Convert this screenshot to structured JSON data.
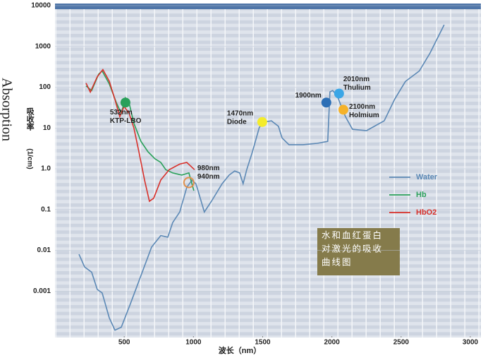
{
  "chart_data": {
    "type": "line",
    "y_label": "Absorption",
    "y_label_cn": "吸收率",
    "y_unit": "(1/cm)",
    "x_label": "波长（nm）",
    "log_y": true,
    "grid": true,
    "legend_position": "right",
    "xlim": [
      0,
      3000
    ],
    "xticks": [
      500,
      1000,
      1500,
      2000,
      2500,
      3000
    ],
    "ylim": [
      0.0001,
      10000
    ],
    "yticks": [
      10000,
      1000,
      100,
      10,
      {
        "value": 1,
        "label": "1.0"
      },
      0.1,
      0.01,
      0.001
    ],
    "series": [
      {
        "name": "Water",
        "color": "#5b88b5",
        "x": [
          173,
          214,
          265,
          305,
          341,
          392,
          433,
          479,
          545,
          621,
          698,
          764,
          815,
          850,
          901,
          952,
          988,
          1018,
          1079,
          1130,
          1207,
          1258,
          1298,
          1334,
          1359,
          1385,
          1426,
          1476,
          1512,
          1563,
          1614,
          1640,
          1690,
          1792,
          1894,
          1970,
          1986,
          2006,
          2037,
          2098,
          2149,
          2251,
          2378,
          2454,
          2531,
          2632,
          2709,
          2811
        ],
        "values": [
          0.008,
          0.0039,
          0.0029,
          0.0011,
          0.0009,
          0.00022,
          0.00011,
          0.00013,
          0.00049,
          0.0024,
          0.012,
          0.023,
          0.021,
          0.048,
          0.087,
          0.35,
          0.52,
          0.43,
          0.087,
          0.16,
          0.43,
          0.7,
          0.88,
          0.79,
          0.43,
          0.95,
          2.6,
          10.4,
          14,
          15,
          11,
          5.7,
          3.9,
          3.9,
          4.2,
          4.7,
          77,
          83,
          63,
          19,
          9.3,
          8.6,
          15,
          51,
          138,
          250,
          690,
          3400
        ]
      },
      {
        "name": "Hb",
        "color": "#2aa05a",
        "x": [
          224,
          265,
          316,
          341,
          392,
          443,
          479,
          509,
          535,
          570,
          621,
          672,
          723,
          764,
          800,
          850,
          916,
          967,
          1003
        ],
        "values": [
          107,
          83,
          210,
          250,
          120,
          42,
          23,
          55,
          42,
          13,
          4.7,
          2.6,
          1.75,
          1.43,
          0.95,
          0.79,
          0.7,
          0.79,
          0.29
        ]
      },
      {
        "name": "HbO2",
        "color": "#d8302a",
        "x": [
          224,
          255,
          305,
          346,
          392,
          433,
          468,
          499,
          535,
          570,
          606,
          647,
          682,
          713,
          764,
          825,
          901,
          952,
          1008
        ],
        "values": [
          126,
          76,
          180,
          270,
          140,
          50,
          19,
          34,
          23,
          10,
          2.6,
          0.53,
          0.16,
          0.19,
          0.53,
          0.95,
          1.3,
          1.43,
          0.95
        ]
      }
    ],
    "lasers": [
      {
        "label": [
          "532nm",
          "KTP-LBO"
        ],
        "x": 509,
        "y": 42,
        "color": "#2aa05a"
      },
      {
        "label": [
          "980nm",
          "940nm"
        ],
        "x": 967,
        "y": 0.46,
        "color": "#e0904a"
      },
      {
        "label": [
          "1470nm",
          "Diode"
        ],
        "x": 1497,
        "y": 14,
        "color": "#f4ec2a"
      },
      {
        "label": [
          "1900nm"
        ],
        "x": 1960,
        "y": 42,
        "color": "#2c6fb6"
      },
      {
        "label": [
          "2010nm",
          "Thulium"
        ],
        "x": 2052,
        "y": 70,
        "color": "#3ba6e6"
      },
      {
        "label": [
          "2100nm",
          "Holmium"
        ],
        "x": 2083,
        "y": 28,
        "color": "#f5b22a"
      }
    ],
    "caption": [
      "水和血红蛋白",
      "对激光的吸收",
      "曲线图"
    ]
  }
}
